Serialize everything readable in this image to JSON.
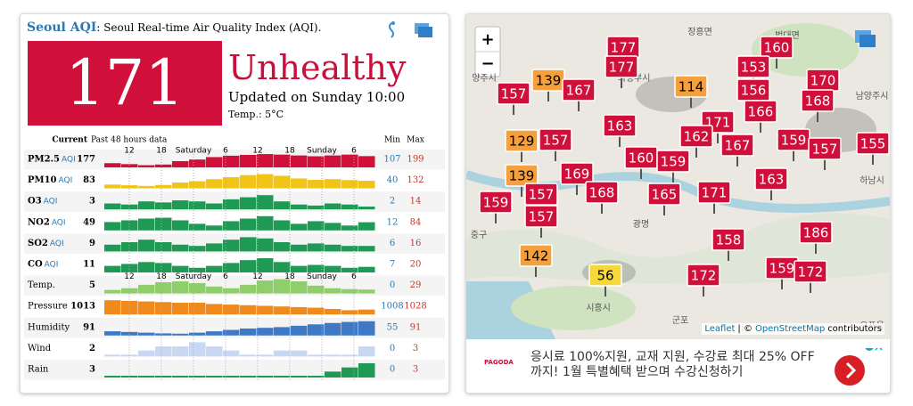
{
  "header": {
    "title": "Seoul AQI",
    "subtitle": ": Seoul Real-time Air Quality Index (AQI)."
  },
  "aqi": {
    "value": 171,
    "status": "Unhealthy",
    "updated": "Updated on Sunday 10:00",
    "temp": "Temp.: 5°C"
  },
  "table": {
    "headers": {
      "current": "Current",
      "past": "Past 48 hours data",
      "min": "Min",
      "max": "Max"
    },
    "time_labels": [
      "12",
      "18",
      "Saturday",
      "6",
      "12",
      "18",
      "Sunday",
      "6"
    ],
    "rows": [
      {
        "name": "PM2.5",
        "unit": "AQI",
        "current": 177,
        "min": 107,
        "max": 199,
        "color": "#d0103a",
        "history": [
          125,
          118,
          110,
          115,
          140,
          152,
          170,
          180,
          186,
          192,
          188,
          182,
          176,
          182,
          188,
          177
        ]
      },
      {
        "name": "PM10",
        "unit": "AQI",
        "current": 83,
        "min": 40,
        "max": 132,
        "color": "#f2c418",
        "history": [
          55,
          50,
          45,
          52,
          70,
          80,
          95,
          110,
          125,
          132,
          120,
          100,
          90,
          95,
          88,
          83
        ]
      },
      {
        "name": "O3",
        "unit": "AQI",
        "current": 3,
        "min": 2,
        "max": 14,
        "color": "#1e9a55",
        "history": [
          6,
          5,
          8,
          7,
          9,
          8,
          6,
          10,
          12,
          14,
          8,
          5,
          4,
          6,
          5,
          3
        ]
      },
      {
        "name": "NO2",
        "unit": "AQI",
        "current": 49,
        "min": 12,
        "max": 84,
        "color": "#1e9a55",
        "history": [
          50,
          60,
          70,
          75,
          60,
          40,
          30,
          55,
          70,
          84,
          60,
          40,
          55,
          45,
          30,
          49
        ]
      },
      {
        "name": "SO2",
        "unit": "AQI",
        "current": 9,
        "min": 6,
        "max": 16,
        "color": "#1e9a55",
        "history": [
          10,
          12,
          14,
          12,
          10,
          9,
          11,
          14,
          16,
          15,
          12,
          10,
          11,
          10,
          9,
          9
        ]
      },
      {
        "name": "CO",
        "unit": "AQI",
        "current": 11,
        "min": 7,
        "max": 20,
        "color": "#1e9a55",
        "history": [
          12,
          14,
          16,
          15,
          12,
          10,
          12,
          15,
          18,
          20,
          16,
          12,
          13,
          12,
          10,
          11
        ]
      },
      {
        "name": "Temp.",
        "unit": null,
        "current": 5,
        "min": 0,
        "max": 29,
        "color": "#8fce6a",
        "history": [
          4,
          8,
          16,
          22,
          24,
          20,
          12,
          8,
          16,
          26,
          29,
          24,
          14,
          8,
          6,
          5
        ]
      },
      {
        "name": "Pressure",
        "unit": null,
        "current": 1013,
        "min": 1008,
        "max": 1028,
        "color": "#f08a1c",
        "history": [
          1028,
          1027,
          1026,
          1025,
          1024,
          1024,
          1022,
          1021,
          1020,
          1019,
          1018,
          1017,
          1016,
          1014,
          1012,
          1013
        ]
      },
      {
        "name": "Humidity",
        "unit": null,
        "current": 91,
        "min": 55,
        "max": 91,
        "color": "#3f78c4",
        "history": [
          62,
          60,
          58,
          56,
          55,
          58,
          62,
          66,
          70,
          72,
          74,
          78,
          82,
          86,
          89,
          91
        ]
      },
      {
        "name": "Wind",
        "unit": null,
        "current": 2,
        "min": 0,
        "max": 3,
        "color": "#c9d8f2",
        "history": [
          0,
          0,
          1,
          2,
          2,
          3,
          2,
          1,
          0,
          0,
          1,
          1,
          0,
          0,
          0,
          2
        ]
      },
      {
        "name": "Rain",
        "unit": null,
        "current": 3,
        "min": 0,
        "max": 3,
        "color": "#1e9a55",
        "history": [
          0,
          0,
          0,
          0,
          0,
          0,
          0,
          0,
          0,
          0,
          0,
          0,
          0,
          1,
          2,
          3
        ]
      }
    ]
  },
  "map": {
    "zoom_in": "+",
    "zoom_out": "−",
    "attribution": [
      "Leaflet",
      "| ©",
      "OpenStreetMap",
      "contributors"
    ],
    "places": [
      "장흥면",
      "법대면",
      "양주시",
      "의정부시",
      "남양주시",
      "하남시",
      "광명",
      "시흥시",
      "군포",
      "오포읍",
      "중구"
    ],
    "markers": [
      {
        "value": 177,
        "color": "#d0103a"
      },
      {
        "value": 177,
        "color": "#d0103a"
      },
      {
        "value": 160,
        "color": "#d0103a"
      },
      {
        "value": 139,
        "color": "#f5a03c"
      },
      {
        "value": 153,
        "color": "#d0103a"
      },
      {
        "value": 170,
        "color": "#d0103a"
      },
      {
        "value": 157,
        "color": "#d0103a"
      },
      {
        "value": 167,
        "color": "#d0103a"
      },
      {
        "value": 114,
        "color": "#f5a03c"
      },
      {
        "value": 156,
        "color": "#d0103a"
      },
      {
        "value": 168,
        "color": "#d0103a"
      },
      {
        "value": 166,
        "color": "#d0103a"
      },
      {
        "value": 163,
        "color": "#d0103a"
      },
      {
        "value": 171,
        "color": "#d0103a"
      },
      {
        "value": 129,
        "color": "#f5a03c"
      },
      {
        "value": 157,
        "color": "#d0103a"
      },
      {
        "value": 162,
        "color": "#d0103a"
      },
      {
        "value": 159,
        "color": "#d0103a"
      },
      {
        "value": 157,
        "color": "#d0103a"
      },
      {
        "value": 155,
        "color": "#d0103a"
      },
      {
        "value": 167,
        "color": "#d0103a"
      },
      {
        "value": 160,
        "color": "#d0103a"
      },
      {
        "value": 159,
        "color": "#d0103a"
      },
      {
        "value": 139,
        "color": "#f5a03c"
      },
      {
        "value": 169,
        "color": "#d0103a"
      },
      {
        "value": 163,
        "color": "#d0103a"
      },
      {
        "value": 157,
        "color": "#d0103a"
      },
      {
        "value": 168,
        "color": "#d0103a"
      },
      {
        "value": 165,
        "color": "#d0103a"
      },
      {
        "value": 171,
        "color": "#d0103a"
      },
      {
        "value": 159,
        "color": "#d0103a"
      },
      {
        "value": 157,
        "color": "#d0103a"
      },
      {
        "value": 186,
        "color": "#d0103a"
      },
      {
        "value": 158,
        "color": "#d0103a"
      },
      {
        "value": 142,
        "color": "#f5a03c"
      },
      {
        "value": 56,
        "color": "#f7d83a"
      },
      {
        "value": 172,
        "color": "#d0103a"
      },
      {
        "value": 159,
        "color": "#d0103a"
      },
      {
        "value": 172,
        "color": "#d0103a"
      }
    ]
  },
  "ad": {
    "brand": "PAGODA",
    "text": "응시료 100%지원, 교재 지원, 수강료 최대 25% OFF 까지! 1월 특별혜택 받으며 수강신청하기"
  }
}
